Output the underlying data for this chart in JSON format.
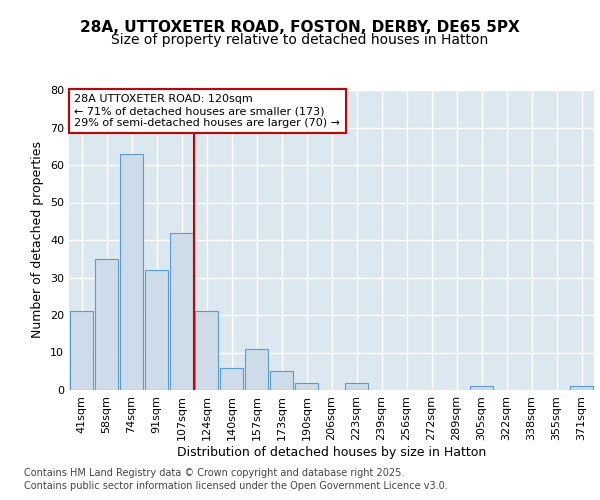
{
  "title1": "28A, UTTOXETER ROAD, FOSTON, DERBY, DE65 5PX",
  "title2": "Size of property relative to detached houses in Hatton",
  "xlabel": "Distribution of detached houses by size in Hatton",
  "ylabel": "Number of detached properties",
  "categories": [
    "41sqm",
    "58sqm",
    "74sqm",
    "91sqm",
    "107sqm",
    "124sqm",
    "140sqm",
    "157sqm",
    "173sqm",
    "190sqm",
    "206sqm",
    "223sqm",
    "239sqm",
    "256sqm",
    "272sqm",
    "289sqm",
    "305sqm",
    "322sqm",
    "338sqm",
    "355sqm",
    "371sqm"
  ],
  "values": [
    21,
    35,
    63,
    32,
    42,
    21,
    6,
    11,
    5,
    2,
    0,
    2,
    0,
    0,
    0,
    0,
    1,
    0,
    0,
    0,
    1
  ],
  "bar_color": "#cddce8",
  "bar_edge_color": "#5b9bd5",
  "vline_color": "#cc0000",
  "annotation_title": "28A UTTOXETER ROAD: 120sqm",
  "annotation_line1": "← 71% of detached houses are smaller (173)",
  "annotation_line2": "29% of semi-detached houses are larger (70) →",
  "annotation_box_facecolor": "#ffffff",
  "annotation_box_edgecolor": "#cc0000",
  "ylim": [
    0,
    80
  ],
  "yticks": [
    0,
    10,
    20,
    30,
    40,
    50,
    60,
    70,
    80
  ],
  "footnote1": "Contains HM Land Registry data © Crown copyright and database right 2025.",
  "footnote2": "Contains public sector information licensed under the Open Government Licence v3.0.",
  "fig_bg_color": "#ffffff",
  "plot_bg_color": "#dce8f0",
  "grid_color": "#ffffff",
  "title_fontsize": 11,
  "subtitle_fontsize": 10,
  "tick_fontsize": 8,
  "label_fontsize": 9,
  "footnote_fontsize": 7
}
